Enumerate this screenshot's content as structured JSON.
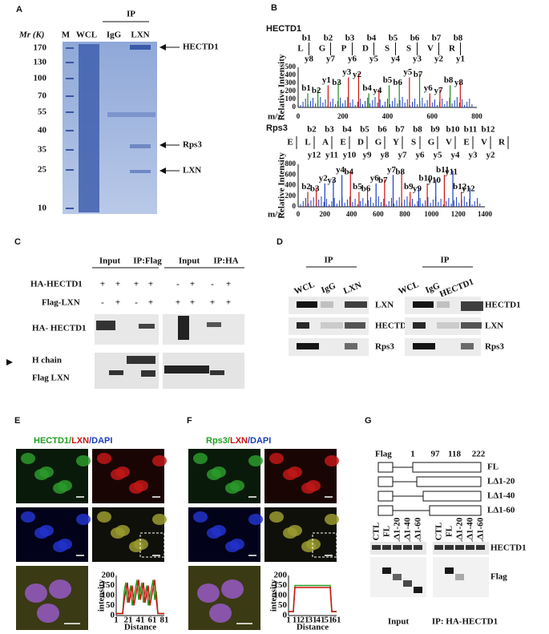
{
  "panels": {
    "A": {
      "label": "A",
      "ip": "IP",
      "lanes": [
        "M",
        "WCL",
        "IgG",
        "LXN"
      ],
      "mw_unit": "Mr (K)",
      "markers": [
        "170",
        "130",
        "100",
        "70",
        "55",
        "40",
        "35",
        "25",
        "10"
      ],
      "bands": [
        "HECTD1",
        "Rps3",
        "LXN"
      ]
    },
    "B": {
      "label": "B",
      "spectra": [
        {
          "protein": "HECTD1",
          "sequence": [
            "L",
            "G",
            "P",
            "D",
            "S",
            "S",
            "V",
            "R"
          ],
          "b_ions": [
            "b1",
            "b2",
            "b3",
            "b4",
            "b5",
            "b6",
            "b7",
            "b8"
          ],
          "y_ions": [
            "y8",
            "y7",
            "y6",
            "y5",
            "y4",
            "y3",
            "y2",
            "y1"
          ],
          "y_axis": "Relative Intensity",
          "yticks": [
            "500",
            "400",
            "300",
            "200",
            "100",
            "0"
          ],
          "x_axis": "m/z",
          "xticks": [
            "0",
            "200",
            "400",
            "600",
            "800"
          ],
          "b_color": "#1f8a1f",
          "y_color": "#d01010",
          "peaks": [
            "b1",
            "b2",
            "y1",
            "b3",
            "y3",
            "y2",
            "b4",
            "y4",
            "b5",
            "b6",
            "y5",
            "b7",
            "y6",
            "y7",
            "b8",
            "y8"
          ]
        },
        {
          "protein": "Rps3",
          "sequence": [
            "E",
            "L",
            "A",
            "E",
            "D",
            "G",
            "Y",
            "S",
            "G",
            "V",
            "E",
            "V",
            "R"
          ],
          "b_ions": [
            "b2",
            "b3",
            "b4",
            "b5",
            "b6",
            "b7",
            "b8",
            "b9",
            "b10",
            "b11",
            "b12"
          ],
          "y_ions": [
            "y12",
            "y11",
            "y10",
            "y9",
            "y8",
            "y7",
            "y6",
            "y5",
            "y4",
            "y3",
            "y2"
          ],
          "y_axis": "Relative Intensity",
          "yticks": [
            "800",
            "600",
            "400",
            "200",
            "0"
          ],
          "x_axis": "m/z",
          "xticks": [
            "0",
            "200",
            "400",
            "600",
            "800",
            "1000",
            "1200",
            "1400"
          ],
          "b_color": "#d01010",
          "y_color": "#1a3fc0",
          "peaks": [
            "b2",
            "b3",
            "y2",
            "y3",
            "y4",
            "b4",
            "b5",
            "b6",
            "y6",
            "b7",
            "y7",
            "b8",
            "b9",
            "y9",
            "b10",
            "y10",
            "b11",
            "y11",
            "b12",
            "y12"
          ]
        }
      ]
    },
    "C": {
      "label": "C",
      "headers": [
        "Input",
        "IP:Flag",
        "Input",
        "IP:HA"
      ],
      "rows": [
        {
          "label": "HA-HECTD1",
          "signs": [
            "+",
            "+",
            "+",
            "+",
            "-",
            "+",
            "-",
            "+"
          ]
        },
        {
          "label": "Flag-LXN",
          "signs": [
            "-",
            "+",
            "-",
            "+",
            "+",
            "+",
            "+",
            "+"
          ]
        }
      ],
      "blot_labels": [
        "HA- HECTD1",
        "H chain",
        "Flag LXN"
      ]
    },
    "D": {
      "label": "D",
      "left": {
        "ip": "IP",
        "lanes": [
          "WCL",
          "IgG",
          "LXN"
        ],
        "bands": [
          "LXN",
          "HECTD1",
          "Rps3"
        ]
      },
      "right": {
        "ip": "IP",
        "lanes": [
          "WCL",
          "IgG",
          "HECTD1"
        ],
        "bands": [
          "HECTD1",
          "LXN",
          "Rps3"
        ]
      }
    },
    "E": {
      "label": "E",
      "title": [
        "HECTD1/",
        "LXN",
        "/DAPI"
      ],
      "y_axis": "intensity",
      "x_axis": "Distance",
      "yticks": [
        "200",
        "150",
        "100",
        "50",
        "0"
      ],
      "xticks": [
        "1",
        "21",
        "41",
        "61",
        "81"
      ]
    },
    "F": {
      "label": "F",
      "title": [
        "Rps3/",
        "LXN",
        "/DAPI"
      ],
      "y_axis": "intensity",
      "x_axis": "Distance",
      "yticks": [
        "200",
        "150",
        "100",
        "50",
        "0"
      ],
      "xticks": [
        "1",
        "11",
        "21",
        "31",
        "41",
        "51",
        "61"
      ]
    },
    "G": {
      "label": "G",
      "tag": "Flag",
      "positions": [
        "1",
        "97",
        "118",
        "222"
      ],
      "constructs": [
        "FL",
        "LΔ1-20",
        "LΔ1-40",
        "LΔ1-60"
      ],
      "lanes": [
        "CTL",
        "FL",
        "LΔ1-20",
        "LΔ1-40",
        "LΔ1-60"
      ],
      "bands": [
        "HECTD1",
        "Flag"
      ],
      "captions": [
        "Input",
        "IP:  HA-HECTD1"
      ]
    }
  }
}
